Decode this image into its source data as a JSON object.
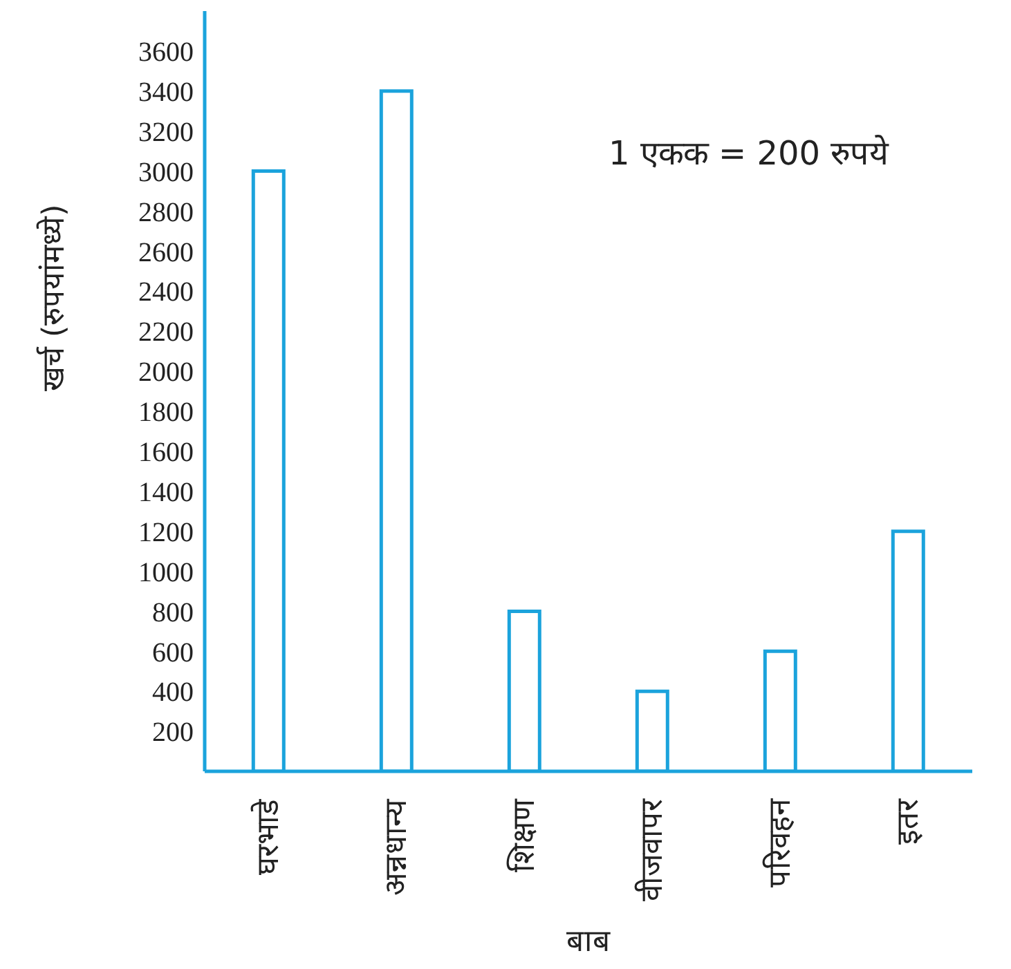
{
  "chart_data": {
    "type": "bar",
    "xlabel": "बाब",
    "ylabel": "खर्च (रुपयांमध्ये)",
    "categories": [
      "घरभाडे",
      "अन्नधान्य",
      "शिक्षण",
      "वीजवापर",
      "परिवहन",
      "इतर"
    ],
    "values": [
      3000,
      3400,
      800,
      400,
      600,
      1200
    ],
    "color": "#1ba3dc",
    "ylim": [
      0,
      3800
    ],
    "yticks": [
      200,
      400,
      600,
      800,
      1000,
      1200,
      1400,
      1600,
      1800,
      2000,
      2200,
      2400,
      2600,
      2800,
      3000,
      3200,
      3400,
      3600
    ],
    "grid": false,
    "annotations": [
      "1 एकक = 200 रुपये"
    ]
  }
}
